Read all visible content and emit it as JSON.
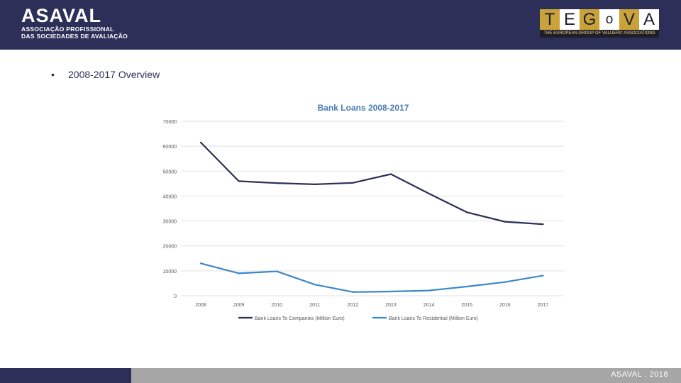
{
  "header": {
    "asaval_logo_text": "ASAVAL",
    "asaval_sub_line1": "ASSOCIAÇÃO PROFISSIONAL",
    "asaval_sub_line2": "DAS SOCIEDADES DE AVALIAÇÃO",
    "tegova_letters": [
      "T",
      "E",
      "G",
      "o",
      "V",
      "A"
    ],
    "tegova_tagline": "THE EUROPEAN GROUP OF VALUERS' ASSOCIATIONS",
    "accent": "#2c2f58",
    "tegova_gold": "#c9a23a"
  },
  "slide": {
    "bullet_symbol": "•",
    "bullet_text": "2008-2017 Overview"
  },
  "chart_data": {
    "type": "line",
    "title": "Bank Loans 2008-2017",
    "xlabel": "",
    "ylabel": "",
    "categories": [
      "2008",
      "2009",
      "2010",
      "2011",
      "2012",
      "2013",
      "2014",
      "2015",
      "2016",
      "2017"
    ],
    "y_ticks": [
      "0",
      "10000",
      "20000",
      "30000",
      "40000",
      "50000",
      "60000",
      "70000"
    ],
    "ylim": [
      0,
      70000
    ],
    "grid": true,
    "legend_position": "bottom",
    "series": [
      {
        "name": "Bank Loans To Companies (Million Euro)",
        "color": "#2c2f58",
        "values": [
          61500,
          46000,
          45200,
          44700,
          45300,
          48800,
          41000,
          33500,
          29700,
          28700
        ]
      },
      {
        "name": "Bank Loans To Residential (Million Euro)",
        "color": "#3c87c9",
        "values": [
          13000,
          9000,
          9800,
          4500,
          1500,
          1700,
          2100,
          3700,
          5500,
          8100
        ]
      }
    ]
  },
  "footer": {
    "text": "ASAVAL . 2018",
    "left_color": "#2c2f58",
    "right_color": "#a6a6a6"
  }
}
